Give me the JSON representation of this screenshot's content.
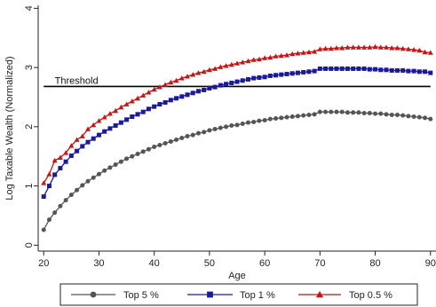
{
  "chart_data": {
    "type": "line",
    "title": "",
    "xlabel": "Age",
    "ylabel": "Log Taxable Wealth (Normalized)",
    "xlim": [
      19,
      91
    ],
    "ylim": [
      -0.1,
      4.05
    ],
    "xticks": [
      20,
      30,
      40,
      50,
      60,
      70,
      80,
      90
    ],
    "yticks": [
      0,
      1,
      2,
      3,
      4
    ],
    "grid": false,
    "legend_position": "bottom",
    "threshold": {
      "label": "Threshold",
      "y": 2.68
    },
    "series": [
      {
        "name": "Top 5 %",
        "color": "#555555",
        "marker": "circle",
        "x": [
          20,
          21,
          22,
          23,
          24,
          25,
          26,
          27,
          28,
          29,
          30,
          31,
          32,
          33,
          34,
          35,
          36,
          37,
          38,
          39,
          40,
          41,
          42,
          43,
          44,
          45,
          46,
          47,
          48,
          49,
          50,
          51,
          52,
          53,
          54,
          55,
          56,
          57,
          58,
          59,
          60,
          61,
          62,
          63,
          64,
          65,
          66,
          67,
          68,
          69,
          70,
          71,
          72,
          73,
          74,
          75,
          76,
          77,
          78,
          79,
          80,
          81,
          82,
          83,
          84,
          85,
          86,
          87,
          88,
          89,
          90
        ],
        "values": [
          0.26,
          0.43,
          0.55,
          0.66,
          0.76,
          0.85,
          0.93,
          1.01,
          1.08,
          1.14,
          1.2,
          1.26,
          1.31,
          1.36,
          1.41,
          1.46,
          1.5,
          1.54,
          1.58,
          1.62,
          1.66,
          1.69,
          1.72,
          1.75,
          1.78,
          1.81,
          1.84,
          1.86,
          1.89,
          1.91,
          1.94,
          1.96,
          1.98,
          2.0,
          2.02,
          2.03,
          2.05,
          2.07,
          2.08,
          2.1,
          2.11,
          2.13,
          2.14,
          2.15,
          2.16,
          2.17,
          2.18,
          2.19,
          2.2,
          2.21,
          2.25,
          2.25,
          2.25,
          2.25,
          2.25,
          2.24,
          2.24,
          2.24,
          2.23,
          2.23,
          2.22,
          2.22,
          2.21,
          2.2,
          2.2,
          2.19,
          2.18,
          2.17,
          2.16,
          2.15,
          2.13
        ]
      },
      {
        "name": "Top 1 %",
        "color": "#1a1aa0",
        "marker": "square",
        "x": [
          20,
          21,
          22,
          23,
          24,
          25,
          26,
          27,
          28,
          29,
          30,
          31,
          32,
          33,
          34,
          35,
          36,
          37,
          38,
          39,
          40,
          41,
          42,
          43,
          44,
          45,
          46,
          47,
          48,
          49,
          50,
          51,
          52,
          53,
          54,
          55,
          56,
          57,
          58,
          59,
          60,
          61,
          62,
          63,
          64,
          65,
          66,
          67,
          68,
          69,
          70,
          71,
          72,
          73,
          74,
          75,
          76,
          77,
          78,
          79,
          80,
          81,
          82,
          83,
          84,
          85,
          86,
          87,
          88,
          89,
          90
        ],
        "values": [
          0.82,
          1.0,
          1.19,
          1.3,
          1.41,
          1.51,
          1.59,
          1.67,
          1.74,
          1.8,
          1.86,
          1.92,
          1.97,
          2.02,
          2.07,
          2.12,
          2.17,
          2.21,
          2.25,
          2.3,
          2.34,
          2.38,
          2.41,
          2.45,
          2.48,
          2.51,
          2.54,
          2.57,
          2.6,
          2.62,
          2.65,
          2.67,
          2.7,
          2.72,
          2.74,
          2.76,
          2.78,
          2.8,
          2.82,
          2.83,
          2.84,
          2.86,
          2.87,
          2.88,
          2.89,
          2.9,
          2.91,
          2.92,
          2.93,
          2.94,
          2.98,
          2.98,
          2.98,
          2.98,
          2.98,
          2.98,
          2.98,
          2.98,
          2.98,
          2.97,
          2.97,
          2.96,
          2.96,
          2.95,
          2.95,
          2.95,
          2.94,
          2.94,
          2.93,
          2.93,
          2.91
        ]
      },
      {
        "name": "Top 0.5 %",
        "color": "#c81414",
        "marker": "triangle",
        "x": [
          20,
          21,
          22,
          23,
          24,
          25,
          26,
          27,
          28,
          29,
          30,
          31,
          32,
          33,
          34,
          35,
          36,
          37,
          38,
          39,
          40,
          41,
          42,
          43,
          44,
          45,
          46,
          47,
          48,
          49,
          50,
          51,
          52,
          53,
          54,
          55,
          56,
          57,
          58,
          59,
          60,
          61,
          62,
          63,
          64,
          65,
          66,
          67,
          68,
          69,
          70,
          71,
          72,
          73,
          74,
          75,
          76,
          77,
          78,
          79,
          80,
          81,
          82,
          83,
          84,
          85,
          86,
          87,
          88,
          89,
          90
        ],
        "values": [
          1.05,
          1.2,
          1.43,
          1.48,
          1.56,
          1.68,
          1.78,
          1.84,
          1.96,
          2.03,
          2.1,
          2.16,
          2.22,
          2.27,
          2.33,
          2.38,
          2.43,
          2.48,
          2.53,
          2.58,
          2.63,
          2.67,
          2.71,
          2.75,
          2.78,
          2.82,
          2.85,
          2.88,
          2.91,
          2.93,
          2.96,
          2.98,
          3.01,
          3.03,
          3.05,
          3.07,
          3.09,
          3.11,
          3.13,
          3.14,
          3.16,
          3.17,
          3.19,
          3.2,
          3.21,
          3.23,
          3.24,
          3.25,
          3.26,
          3.27,
          3.31,
          3.32,
          3.32,
          3.33,
          3.33,
          3.34,
          3.34,
          3.34,
          3.34,
          3.34,
          3.35,
          3.34,
          3.34,
          3.33,
          3.33,
          3.32,
          3.31,
          3.3,
          3.29,
          3.26,
          3.25
        ]
      }
    ]
  }
}
